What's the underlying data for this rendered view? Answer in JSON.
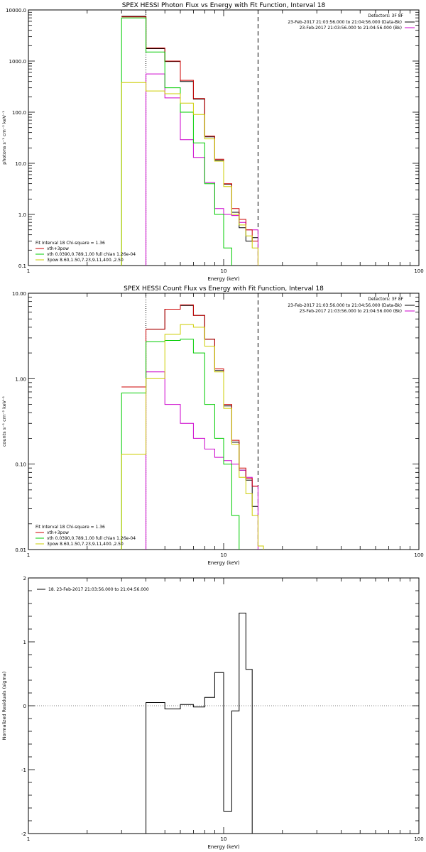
{
  "colors": {
    "data": "#000000",
    "bkg": "#cc00cc",
    "total": "#cc0000",
    "vth": "#00cc00",
    "pow": "#cccc00"
  },
  "chart_data": [
    {
      "type": "line",
      "title": "SPEX HESSI Photon Flux vs Energy with Fit Function, Interval 18",
      "xlabel": "Energy (keV)",
      "ylabel": "photons s⁻¹ cm⁻² keV⁻¹",
      "xscale": "log",
      "yscale": "log",
      "xlim": [
        1,
        100
      ],
      "ylim": [
        0.1,
        10000
      ],
      "xticks": [
        1,
        10,
        100
      ],
      "xtick_labels": [
        "1",
        "10",
        "100"
      ],
      "yticks": [
        0.1,
        1,
        10,
        100,
        1000,
        10000
      ],
      "ytick_labels": [
        "0.1",
        "1.0",
        "10.0",
        "100.0",
        "1000.0",
        "10000.0"
      ],
      "edges": [
        3.0,
        4.0,
        5.0,
        6.0,
        7.0,
        8.0,
        9.0,
        10.0,
        11.0,
        12.0,
        13.0,
        14.0,
        15.0
      ],
      "vlines": [
        {
          "x": 4.0,
          "style": "dotted"
        },
        {
          "x": 15.0,
          "style": "dashed"
        }
      ],
      "legend_title": "Detectors: 3F 8F",
      "legend_right": [
        {
          "text": "23-Feb-2017 21:03:56.000 to 21:04:56.000 (Data-Bk)",
          "color": "#000000"
        },
        {
          "text": "23-Feb-2017 21:03:56.000 to 21:04:56.000 (Bk)",
          "color": "#cc00cc"
        }
      ],
      "fit_header": "Fit Interval 18    Chi-square = 1.36",
      "legend_left": [
        {
          "text": "vth+3pow",
          "color": "#cc0000"
        },
        {
          "text": "vth 0.0390,0.789,1.00  full chian 1.26e-04",
          "color": "#00cc00"
        },
        {
          "text": "3pow 8.60,1.50,7.23,9.11,400.,2.50",
          "color": "#cccc00"
        }
      ],
      "series": [
        {
          "color": "#000000",
          "values": [
            7500,
            1750,
            980,
            400,
            180,
            33,
            11.5,
            3.9,
            1.1,
            0.55,
            0.3,
            0.35
          ],
          "extend_down": false
        },
        {
          "color": "#cc00cc",
          "values": [
            null,
            560,
            190,
            29,
            13,
            4.2,
            1.3,
            1.0,
            0.95,
            0.7,
            0.5,
            0.5
          ],
          "extend_down": true
        },
        {
          "color": "#cc0000",
          "values": [
            7300,
            1800,
            1000,
            420,
            185,
            34,
            12,
            4.0,
            1.3,
            0.8,
            0.5,
            0.3
          ],
          "extend_down": false
        },
        {
          "color": "#00cc00",
          "values": [
            7000,
            1500,
            300,
            100,
            25,
            4.0,
            1.0,
            0.22,
            0.09,
            0.08,
            0.08,
            0.08
          ],
          "extend_down": true
        },
        {
          "color": "#cccc00",
          "values": [
            380,
            260,
            230,
            150,
            90,
            30,
            11,
            3.5,
            1.0,
            0.62,
            0.38,
            0.22
          ],
          "extend_down": true
        }
      ]
    },
    {
      "type": "line",
      "title": "SPEX HESSI Count Flux vs Energy with Fit Function, Interval 18",
      "xlabel": "Energy (keV)",
      "ylabel": "counts s⁻¹ cm⁻² keV⁻¹",
      "xscale": "log",
      "yscale": "log",
      "xlim": [
        1,
        100
      ],
      "ylim": [
        0.01,
        10
      ],
      "xticks": [
        1,
        10,
        100
      ],
      "xtick_labels": [
        "1",
        "10",
        "100"
      ],
      "yticks": [
        0.01,
        0.1,
        1,
        10
      ],
      "ytick_labels": [
        "0.01",
        "0.10",
        "1.00",
        "10.00"
      ],
      "edges": [
        3.0,
        4.0,
        5.0,
        6.0,
        7.0,
        8.0,
        9.0,
        10.0,
        11.0,
        12.0,
        13.0,
        14.0,
        15.0,
        16.0
      ],
      "vlines": [
        {
          "x": 4.0,
          "style": "dotted"
        },
        {
          "x": 15.0,
          "style": "dashed"
        }
      ],
      "legend_title": "Detectors: 3F 8F",
      "legend_right": [
        {
          "text": "23-Feb-2017 21:03:56.000 to 21:04:56.000 (Data-Bk)",
          "color": "#000000"
        },
        {
          "text": "23-Feb-2017 21:03:56.000 to 21:04:56.000 (Bk)",
          "color": "#cc00cc"
        }
      ],
      "fit_header": "Fit Interval 18    Chi-square = 1.36",
      "legend_left": [
        {
          "text": "vth+3pow",
          "color": "#cc0000"
        },
        {
          "text": "vth 0.0390,0.789,1.00  full chian 1.26e-04",
          "color": "#00cc00"
        },
        {
          "text": "3pow 8.60,1.50,7.23,9.11,400.,2.50",
          "color": "#cccc00"
        }
      ],
      "series": [
        {
          "color": "#000000",
          "values": [
            null,
            3.8,
            6.5,
            7.2,
            5.5,
            2.9,
            1.25,
            0.48,
            0.18,
            0.085,
            0.065,
            0.032,
            null
          ],
          "extend_down": false
        },
        {
          "color": "#cc00cc",
          "values": [
            null,
            1.2,
            0.5,
            0.3,
            0.2,
            0.15,
            0.12,
            0.11,
            0.1,
            0.085,
            0.07,
            0.055,
            null
          ],
          "extend_down": true
        },
        {
          "color": "#cc0000",
          "values": [
            0.8,
            3.8,
            6.5,
            7.3,
            5.5,
            2.9,
            1.3,
            0.5,
            0.19,
            0.09,
            0.068,
            0.055,
            null
          ],
          "extend_down": false
        },
        {
          "color": "#00cc00",
          "values": [
            0.68,
            2.7,
            2.8,
            2.9,
            2.0,
            0.5,
            0.2,
            0.1,
            0.025,
            null,
            null,
            null,
            null
          ],
          "extend_down": true
        },
        {
          "color": "#cccc00",
          "values": [
            0.13,
            1.0,
            3.3,
            4.3,
            4.0,
            2.4,
            1.2,
            0.45,
            0.17,
            0.07,
            0.045,
            0.025,
            0.011
          ],
          "extend_down": true
        }
      ]
    },
    {
      "type": "line",
      "title": "",
      "xlabel": "Energy (keV)",
      "ylabel": "Normalized Residuals (sigma)",
      "xscale": "log",
      "yscale": "linear",
      "xlim": [
        1,
        100
      ],
      "ylim": [
        -2,
        2
      ],
      "xticks": [
        1,
        10,
        100
      ],
      "xtick_labels": [
        "1",
        "10",
        "100"
      ],
      "yticks": [
        -2,
        -1,
        0,
        1,
        2
      ],
      "ytick_labels": [
        "-2",
        "-1",
        "0",
        "1",
        "2"
      ],
      "edges": [
        4.0,
        5.0,
        6.0,
        7.0,
        8.0,
        9.0,
        10.0,
        11.0,
        12.0,
        13.0,
        14.0,
        15.0
      ],
      "vlines": [],
      "legend_left_top": [
        {
          "text": "18. 23-Feb-2017 21:03:56.000 to 21:04:56.000",
          "color": "#000000"
        }
      ],
      "series": [
        {
          "color": "#000000",
          "values": [
            0.05,
            -0.05,
            0.02,
            -0.02,
            0.13,
            0.52,
            -1.65,
            -0.08,
            1.45,
            0.57,
            null
          ],
          "extend_down": true
        }
      ]
    }
  ]
}
